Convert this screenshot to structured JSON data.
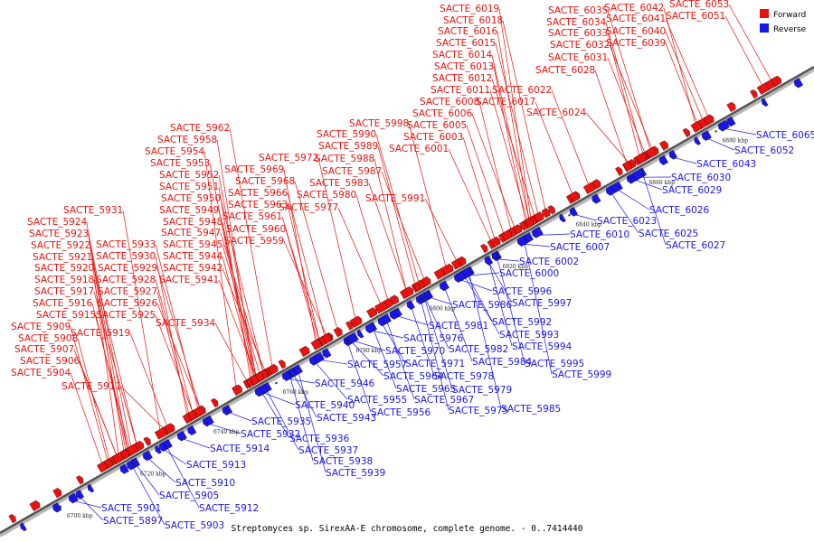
{
  "caption": "Streptomyces sp. SirexAA-E chromosome, complete genome. - 0..7414440",
  "legend": {
    "forward_label": "Forward",
    "reverse_label": "Reverse",
    "forward_color": "#e8130e",
    "reverse_color": "#1a17e6"
  },
  "axis": {
    "tick_labels": [
      "6700 kbp",
      "6720 kbp",
      "6740 kbp",
      "6760 kbp",
      "6780 kbp",
      "6800 kbp",
      "6820 kbp",
      "6840 kbp",
      "6860 kbp",
      "6880 kbp"
    ]
  },
  "forward_genes": [
    "SACTE_5904",
    "SACTE_5906",
    "SACTE_5907",
    "SACTE_5908",
    "SACTE_5909",
    "SACTE_5911",
    "SACTE_5915",
    "SACTE_5916",
    "SACTE_5917",
    "SACTE_5918",
    "SACTE_5919",
    "SACTE_5920",
    "SACTE_5921",
    "SACTE_5922",
    "SACTE_5923",
    "SACTE_5924",
    "SACTE_5925",
    "SACTE_5926",
    "SACTE_5927",
    "SACTE_5928",
    "SACTE_5929",
    "SACTE_5930",
    "SACTE_5931",
    "SACTE_5933",
    "SACTE_5934",
    "SACTE_5941",
    "SACTE_5942",
    "SACTE_5944",
    "SACTE_5945",
    "SACTE_5947",
    "SACTE_5948",
    "SACTE_5949",
    "SACTE_5950",
    "SACTE_5951",
    "SACTE_5952",
    "SACTE_5953",
    "SACTE_5954",
    "SACTE_5958",
    "SACTE_5959",
    "SACTE_5960",
    "SACTE_5961",
    "SACTE_5962",
    "SACTE_5963",
    "SACTE_5966",
    "SACTE_5968",
    "SACTE_5969",
    "SACTE_5972",
    "SACTE_5977",
    "SACTE_5980",
    "SACTE_5983",
    "SACTE_5987",
    "SACTE_5988",
    "SACTE_5989",
    "SACTE_5990",
    "SACTE_5991",
    "SACTE_5998",
    "SACTE_6001",
    "SACTE_6003",
    "SACTE_6005",
    "SACTE_6006",
    "SACTE_6008",
    "SACTE_6011",
    "SACTE_6012",
    "SACTE_6013",
    "SACTE_6014",
    "SACTE_6015",
    "SACTE_6016",
    "SACTE_6017",
    "SACTE_6018",
    "SACTE_6019",
    "SACTE_6022",
    "SACTE_6024",
    "SACTE_6028",
    "SACTE_6031",
    "SACTE_6032",
    "SACTE_6033",
    "SACTE_6034",
    "SACTE_6035",
    "SACTE_6039",
    "SACTE_6040",
    "SACTE_6041",
    "SACTE_6042",
    "SACTE_6051",
    "SACTE_6053"
  ],
  "reverse_genes": [
    "SACTE_5897",
    "SACTE_5901",
    "SACTE_5903",
    "SACTE_5905",
    "SACTE_5910",
    "SACTE_5912",
    "SACTE_5913",
    "SACTE_5914",
    "SACTE_5932",
    "SACTE_5935",
    "SACTE_5936",
    "SACTE_5937",
    "SACTE_5938",
    "SACTE_5939",
    "SACTE_5940",
    "SACTE_5943",
    "SACTE_5946",
    "SACTE_5955",
    "SACTE_5956",
    "SACTE_5957",
    "SACTE_5964",
    "SACTE_5965",
    "SACTE_5967",
    "SACTE_5970",
    "SACTE_5971",
    "SACTE_5975",
    "SACTE_5976",
    "SACTE_5978",
    "SACTE_5979",
    "SACTE_5981",
    "SACTE_5982",
    "SACTE_5984",
    "SACTE_5985",
    "SACTE_5986",
    "SACTE_5992",
    "SACTE_5993",
    "SACTE_5994",
    "SACTE_5995",
    "SACTE_5996",
    "SACTE_5997",
    "SACTE_5999",
    "SACTE_6000",
    "SACTE_6002",
    "SACTE_6007",
    "SACTE_6010",
    "SACTE_6023",
    "SACTE_6025",
    "SACTE_6026",
    "SACTE_6027",
    "SACTE_6029",
    "SACTE_6030",
    "SACTE_6043",
    "SACTE_6052",
    "SACTE_6065"
  ]
}
